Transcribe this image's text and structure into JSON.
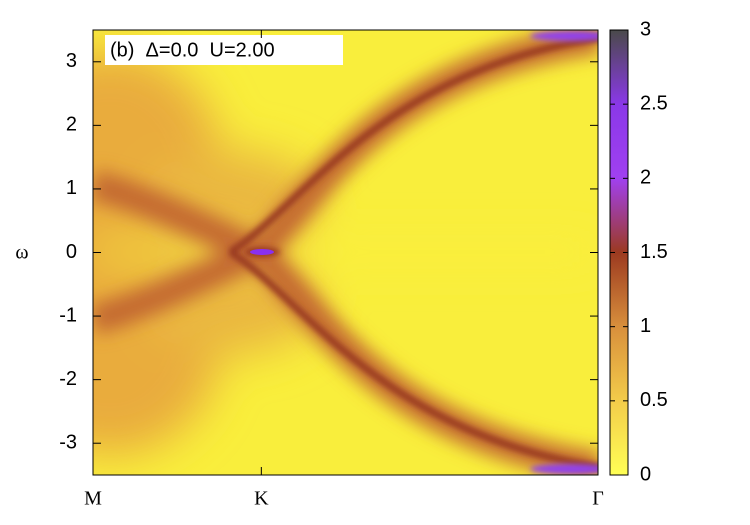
{
  "chart_data": {
    "type": "heatmap",
    "title": "(b)  Δ=0.0  U=2.00",
    "ylabel": "ω",
    "xlim": [
      0,
      3
    ],
    "xticks": [
      {
        "value": 0,
        "label": "M"
      },
      {
        "value": 1,
        "label": "K"
      },
      {
        "value": 3,
        "label": "Γ"
      }
    ],
    "ylim": [
      -3.5,
      3.5
    ],
    "yticks": [
      -3,
      -2,
      -1,
      0,
      1,
      2,
      3
    ],
    "zlim": [
      0,
      3
    ],
    "zticks": [
      0,
      0.5,
      1,
      1.5,
      2,
      2.5,
      3
    ],
    "colormap": [
      "#ffff55",
      "#f3cc4a",
      "#d88f3c",
      "#9c3a20",
      "#a040f0",
      "#8a38e8",
      "#4a4a4a"
    ]
  }
}
